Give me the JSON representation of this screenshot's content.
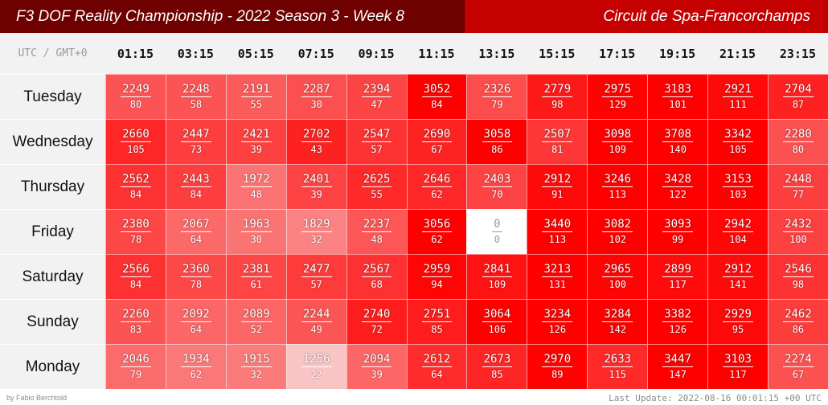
{
  "header": {
    "title": "F3 DOF Reality Championship - 2022 Season 3 - Week 8",
    "track": "Circuit de Spa-Francorchamps"
  },
  "timezone_label": "UTC / GMT+0",
  "times": [
    "01:15",
    "03:15",
    "05:15",
    "07:15",
    "09:15",
    "11:15",
    "13:15",
    "15:15",
    "17:15",
    "19:15",
    "21:15",
    "23:15"
  ],
  "colors": {
    "header_left": "#6e0000",
    "header_right": "#c40000",
    "cell_hot": "#ff0000",
    "cell_zero": "#ffffff"
  },
  "rows": [
    {
      "day": "Tuesday",
      "values": [
        [
          2249,
          80
        ],
        [
          2248,
          58
        ],
        [
          2191,
          55
        ],
        [
          2287,
          30
        ],
        [
          2394,
          47
        ],
        [
          3052,
          84
        ],
        [
          2326,
          79
        ],
        [
          2779,
          98
        ],
        [
          2975,
          129
        ],
        [
          3183,
          101
        ],
        [
          2921,
          111
        ],
        [
          2704,
          87
        ]
      ]
    },
    {
      "day": "Wednesday",
      "values": [
        [
          2660,
          105
        ],
        [
          2447,
          73
        ],
        [
          2421,
          39
        ],
        [
          2702,
          43
        ],
        [
          2547,
          57
        ],
        [
          2690,
          67
        ],
        [
          3058,
          86
        ],
        [
          2507,
          81
        ],
        [
          3098,
          109
        ],
        [
          3708,
          140
        ],
        [
          3342,
          105
        ],
        [
          2280,
          80
        ]
      ]
    },
    {
      "day": "Thursday",
      "values": [
        [
          2562,
          84
        ],
        [
          2443,
          84
        ],
        [
          1972,
          48
        ],
        [
          2401,
          39
        ],
        [
          2625,
          55
        ],
        [
          2646,
          62
        ],
        [
          2403,
          70
        ],
        [
          2912,
          91
        ],
        [
          3246,
          113
        ],
        [
          3428,
          122
        ],
        [
          3153,
          103
        ],
        [
          2448,
          77
        ]
      ]
    },
    {
      "day": "Friday",
      "values": [
        [
          2380,
          78
        ],
        [
          2067,
          64
        ],
        [
          1963,
          30
        ],
        [
          1829,
          32
        ],
        [
          2237,
          48
        ],
        [
          3056,
          62
        ],
        [
          0,
          0
        ],
        [
          3440,
          113
        ],
        [
          3082,
          102
        ],
        [
          3093,
          99
        ],
        [
          2942,
          104
        ],
        [
          2432,
          100
        ]
      ]
    },
    {
      "day": "Saturday",
      "values": [
        [
          2566,
          84
        ],
        [
          2360,
          78
        ],
        [
          2381,
          61
        ],
        [
          2477,
          57
        ],
        [
          2567,
          68
        ],
        [
          2959,
          94
        ],
        [
          2841,
          109
        ],
        [
          3213,
          131
        ],
        [
          2965,
          100
        ],
        [
          2899,
          117
        ],
        [
          2912,
          141
        ],
        [
          2546,
          98
        ]
      ]
    },
    {
      "day": "Sunday",
      "values": [
        [
          2260,
          83
        ],
        [
          2092,
          64
        ],
        [
          2089,
          52
        ],
        [
          2244,
          49
        ],
        [
          2740,
          72
        ],
        [
          2751,
          85
        ],
        [
          3064,
          106
        ],
        [
          3234,
          126
        ],
        [
          3284,
          142
        ],
        [
          3382,
          126
        ],
        [
          2929,
          95
        ],
        [
          2462,
          86
        ]
      ]
    },
    {
      "day": "Monday",
      "values": [
        [
          2046,
          79
        ],
        [
          1934,
          62
        ],
        [
          1915,
          32
        ],
        [
          1256,
          22
        ],
        [
          2094,
          39
        ],
        [
          2612,
          64
        ],
        [
          2673,
          85
        ],
        [
          2970,
          89
        ],
        [
          2633,
          115
        ],
        [
          3447,
          147
        ],
        [
          3103,
          117
        ],
        [
          2274,
          67
        ]
      ]
    }
  ],
  "footer": {
    "credit": "by Fabio Berchtold",
    "last_update": "Last Update: 2022-08-16 00:01:15 +00 UTC"
  }
}
